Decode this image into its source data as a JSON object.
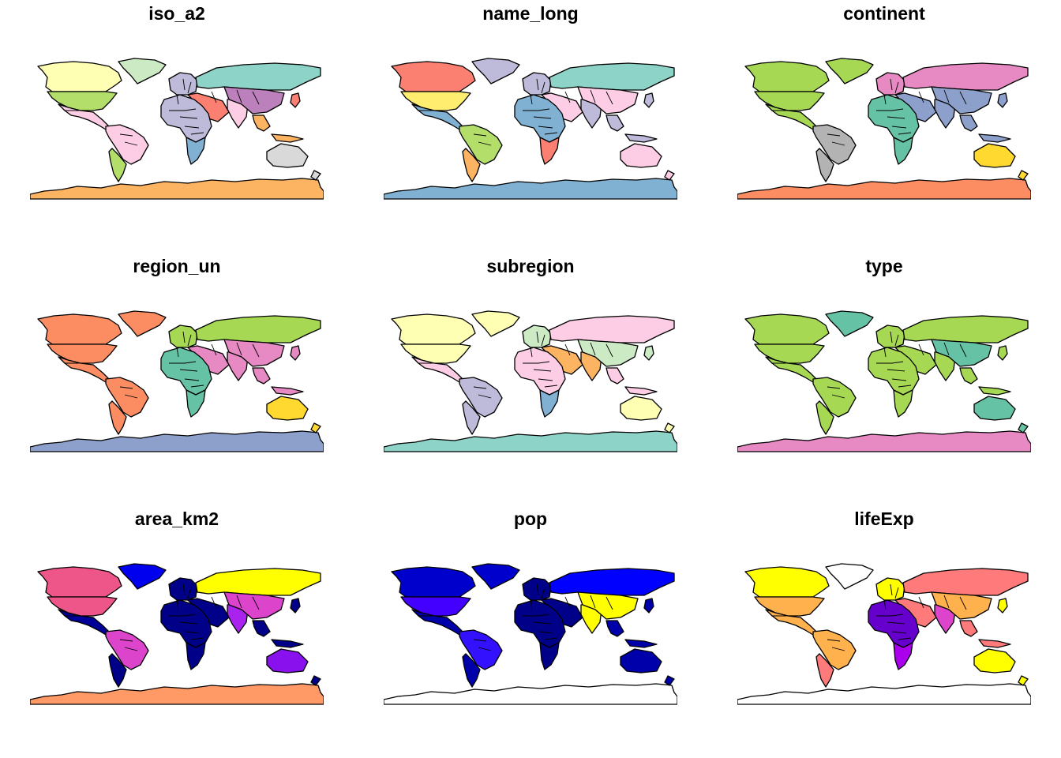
{
  "panels": [
    {
      "title": "iso_a2",
      "colors": {
        "ant": "#fdb462",
        "nam": "#b3de69",
        "can": "#ffffb3",
        "grl": "#ccebc5",
        "cam": "#fccde5",
        "sam": "#fccde5",
        "saw": "#b3de69",
        "eur": "#bebada",
        "rus": "#8dd3c7",
        "mea": "#fb8072",
        "afr": "#bebada",
        "afs": "#80b1d3",
        "ind": "#fccde5",
        "chn": "#bc80bd",
        "sea": "#fdb462",
        "aus": "#d9d9d9",
        "jpn": "#fb8072",
        "nz": "#d9d9d9"
      }
    },
    {
      "title": "name_long",
      "colors": {
        "ant": "#80b1d3",
        "nam": "#ffed6f",
        "can": "#fb8072",
        "grl": "#bebada",
        "cam": "#80b1d3",
        "sam": "#b3de69",
        "saw": "#fdb462",
        "eur": "#bebada",
        "rus": "#8dd3c7",
        "mea": "#fccde5",
        "afr": "#80b1d3",
        "afs": "#fb8072",
        "ind": "#bebada",
        "chn": "#fccde5",
        "sea": "#bebada",
        "aus": "#fccde5",
        "jpn": "#bebada",
        "nz": "#fccde5"
      }
    },
    {
      "title": "continent",
      "colors": {
        "ant": "#fc8d62",
        "nam": "#a6d854",
        "can": "#a6d854",
        "grl": "#a6d854",
        "cam": "#a6d854",
        "sam": "#b3b3b3",
        "saw": "#b3b3b3",
        "eur": "#e78ac3",
        "rus": "#e78ac3",
        "mea": "#8da0cb",
        "afr": "#66c2a5",
        "afs": "#66c2a5",
        "ind": "#8da0cb",
        "chn": "#8da0cb",
        "sea": "#8da0cb",
        "aus": "#ffd92f",
        "jpn": "#8da0cb",
        "nz": "#ffd92f"
      }
    },
    {
      "title": "region_un",
      "colors": {
        "ant": "#8da0cb",
        "nam": "#fc8d62",
        "can": "#fc8d62",
        "grl": "#fc8d62",
        "cam": "#fc8d62",
        "sam": "#fc8d62",
        "saw": "#fc8d62",
        "eur": "#a6d854",
        "rus": "#a6d854",
        "mea": "#e78ac3",
        "afr": "#66c2a5",
        "afs": "#66c2a5",
        "ind": "#e78ac3",
        "chn": "#e78ac3",
        "sea": "#e78ac3",
        "aus": "#ffd92f",
        "jpn": "#e78ac3",
        "nz": "#ffd92f"
      }
    },
    {
      "title": "subregion",
      "colors": {
        "ant": "#8dd3c7",
        "nam": "#ffffb3",
        "can": "#ffffb3",
        "grl": "#ffffb3",
        "cam": "#fccde5",
        "sam": "#bebada",
        "saw": "#bebada",
        "eur": "#ccebc5",
        "rus": "#fccde5",
        "mea": "#fdb462",
        "afr": "#fccde5",
        "afs": "#80b1d3",
        "ind": "#fdb462",
        "chn": "#ccebc5",
        "sea": "#fccde5",
        "aus": "#ffffb3",
        "jpn": "#ccebc5",
        "nz": "#ffffb3"
      }
    },
    {
      "title": "type",
      "colors": {
        "ant": "#e78ac3",
        "nam": "#a6d854",
        "can": "#a6d854",
        "grl": "#66c2a5",
        "cam": "#a6d854",
        "sam": "#a6d854",
        "saw": "#a6d854",
        "eur": "#a6d854",
        "rus": "#a6d854",
        "mea": "#a6d854",
        "afr": "#a6d854",
        "afs": "#a6d854",
        "ind": "#a6d854",
        "chn": "#66c2a5",
        "sea": "#a6d854",
        "aus": "#66c2a5",
        "jpn": "#a6d854",
        "nz": "#66c2a5"
      }
    },
    {
      "title": "area_km2",
      "colors": {
        "ant": "#ff9966",
        "nam": "#ee5588",
        "can": "#ee5588",
        "grl": "#0000ee",
        "cam": "#000099",
        "sam": "#dd44cc",
        "saw": "#000088",
        "eur": "#000088",
        "rus": "#ffff00",
        "mea": "#000088",
        "afr": "#000088",
        "afs": "#000088",
        "ind": "#aa22ee",
        "chn": "#dd44cc",
        "sea": "#000088",
        "aus": "#8811ee",
        "jpn": "#000088",
        "nz": "#000088"
      }
    },
    {
      "title": "pop",
      "colors": {
        "ant": "#ffffff",
        "nam": "#4400ff",
        "can": "#0000cc",
        "grl": "#0000cc",
        "cam": "#0000aa",
        "sam": "#3311ff",
        "saw": "#0000aa",
        "eur": "#000088",
        "rus": "#0000ff",
        "mea": "#000088",
        "afr": "#000088",
        "afs": "#000088",
        "ind": "#ffff00",
        "chn": "#ffff00",
        "sea": "#0000aa",
        "aus": "#0000aa",
        "jpn": "#0000aa",
        "nz": "#0000aa"
      }
    },
    {
      "title": "lifeExp",
      "colors": {
        "ant": "#ffffff",
        "nam": "#ffb14e",
        "can": "#ffff00",
        "grl": "#ffffff",
        "cam": "#ffb14e",
        "sam": "#ffb14e",
        "saw": "#ff7b7b",
        "eur": "#ffff00",
        "rus": "#ff7b7b",
        "mea": "#ff7b7b",
        "afr": "#6600cc",
        "afs": "#aa00ee",
        "ind": "#dd44cc",
        "chn": "#ffb14e",
        "sea": "#ff7b7b",
        "aus": "#ffff00",
        "jpn": "#ffff00",
        "nz": "#ffff00"
      }
    }
  ]
}
